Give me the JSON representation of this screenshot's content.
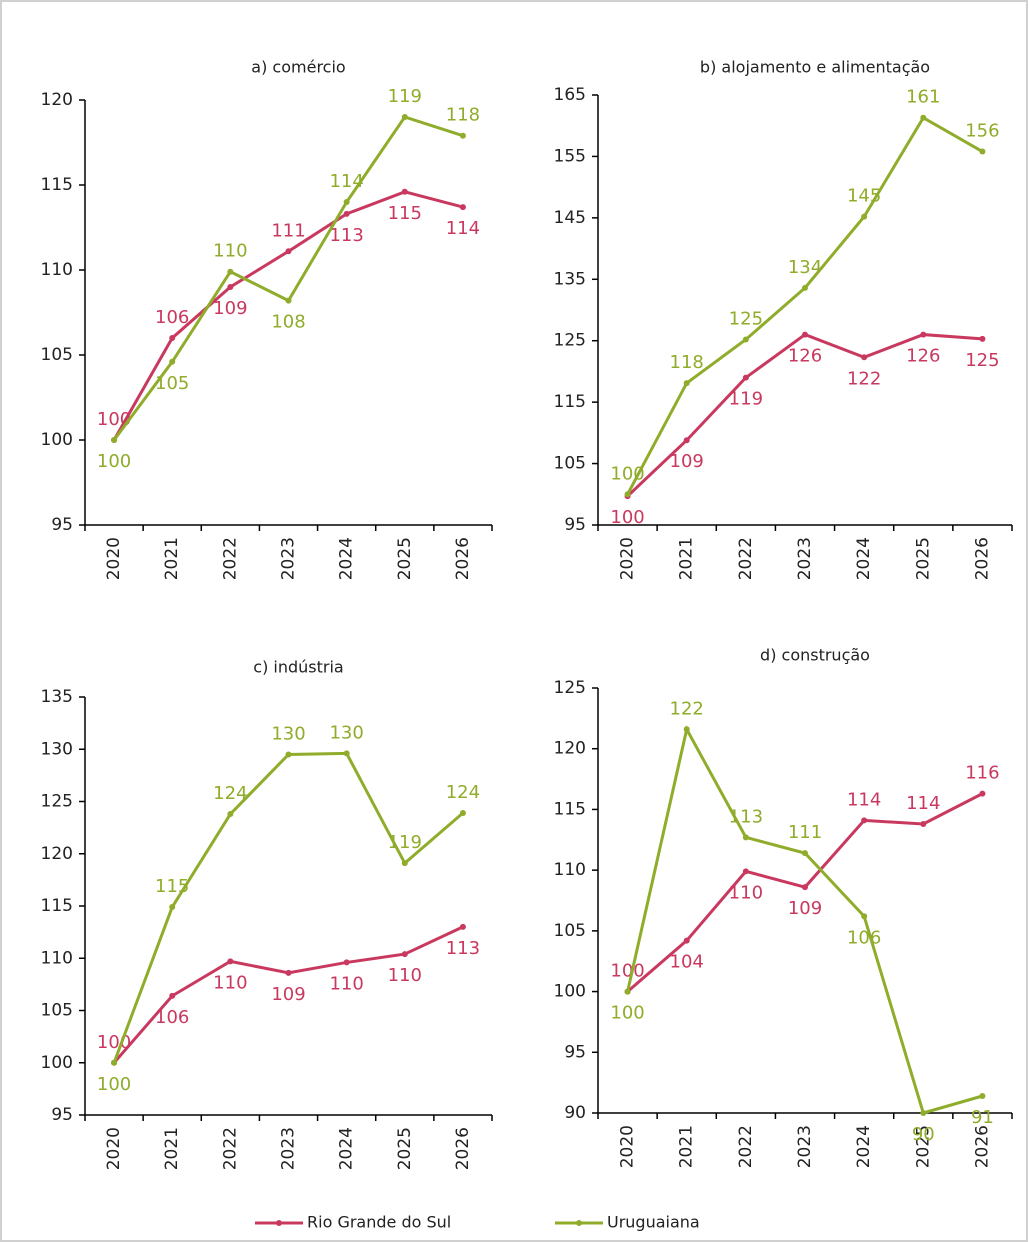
{
  "chart_data": [
    {
      "type": "line",
      "title": "a) comércio",
      "categories": [
        "2020",
        "2021",
        "2022",
        "2023",
        "2024",
        "2025",
        "2026"
      ],
      "ylim": [
        95,
        120
      ],
      "yticks": [
        95,
        100,
        105,
        110,
        115,
        120
      ],
      "series": [
        {
          "name": "Rio Grande do Sul",
          "color": "#c9395f",
          "values": [
            100,
            106.0,
            109.0,
            111.1,
            113.3,
            114.6,
            113.7
          ],
          "value_labels": [
            100,
            106,
            109,
            111,
            113,
            115,
            114
          ]
        },
        {
          "name": "Uruguaiana",
          "color": "#8fac2a",
          "values": [
            100,
            104.6,
            109.9,
            108.2,
            114.0,
            119.0,
            117.9
          ],
          "value_labels": [
            100,
            105,
            110,
            108,
            114,
            119,
            118
          ]
        }
      ]
    },
    {
      "type": "line",
      "title": "b) alojamento e alimentação",
      "categories": [
        "2020",
        "2021",
        "2022",
        "2023",
        "2024",
        "2025",
        "2026"
      ],
      "ylim": [
        95,
        165
      ],
      "yticks": [
        95,
        105,
        115,
        125,
        135,
        145,
        155,
        165
      ],
      "series": [
        {
          "name": "Rio Grande do Sul",
          "color": "#c9395f",
          "values": [
            99.7,
            108.8,
            119.0,
            126.0,
            122.3,
            126.0,
            125.3
          ],
          "value_labels": [
            100,
            109,
            119,
            126,
            122,
            126,
            125
          ]
        },
        {
          "name": "Uruguaiana",
          "color": "#8fac2a",
          "values": [
            100,
            118.1,
            125.2,
            133.6,
            145.2,
            161.3,
            155.8
          ],
          "value_labels": [
            100,
            118,
            125,
            134,
            145,
            161,
            156
          ]
        }
      ]
    },
    {
      "type": "line",
      "title": "c) indústria",
      "categories": [
        "2020",
        "2021",
        "2022",
        "2023",
        "2024",
        "2025",
        "2026"
      ],
      "ylim": [
        95,
        135
      ],
      "yticks": [
        95,
        100,
        105,
        110,
        115,
        120,
        125,
        130,
        135
      ],
      "series": [
        {
          "name": "Rio Grande do Sul",
          "color": "#c9395f",
          "values": [
            100,
            106.4,
            109.7,
            108.6,
            109.6,
            110.4,
            113.0
          ],
          "value_labels": [
            100,
            106,
            110,
            109,
            110,
            110,
            113
          ]
        },
        {
          "name": "Uruguaiana",
          "color": "#8fac2a",
          "values": [
            100,
            114.9,
            123.8,
            129.5,
            129.6,
            119.1,
            123.9
          ],
          "value_labels": [
            100,
            115,
            124,
            130,
            130,
            119,
            124
          ]
        }
      ]
    },
    {
      "type": "line",
      "title": "d) construção",
      "categories": [
        "2020",
        "2021",
        "2022",
        "2023",
        "2024",
        "2025",
        "2026"
      ],
      "ylim": [
        90,
        125
      ],
      "yticks": [
        90,
        95,
        100,
        105,
        110,
        115,
        120,
        125
      ],
      "series": [
        {
          "name": "Rio Grande do Sul",
          "color": "#c9395f",
          "values": [
            100,
            104.2,
            109.9,
            108.6,
            114.1,
            113.8,
            116.3
          ],
          "value_labels": [
            100,
            104,
            110,
            109,
            114,
            114,
            116
          ]
        },
        {
          "name": "Uruguaiana",
          "color": "#8fac2a",
          "values": [
            100,
            121.6,
            112.7,
            111.4,
            106.2,
            90.0,
            91.4
          ],
          "value_labels": [
            100,
            122,
            113,
            111,
            106,
            90,
            91
          ]
        }
      ]
    }
  ]
}
